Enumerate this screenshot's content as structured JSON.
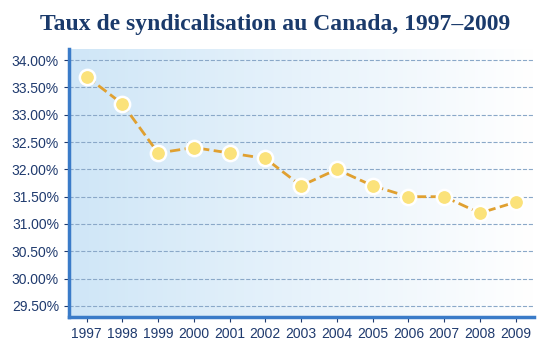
{
  "chart_data": {
    "type": "line",
    "title": "Taux de syndicalisation au Canada, 1997–2009",
    "categories": [
      "1997",
      "1998",
      "1999",
      "2000",
      "2001",
      "2002",
      "2003",
      "2004",
      "2005",
      "2006",
      "2007",
      "2008",
      "2009"
    ],
    "values": [
      33.7,
      33.2,
      32.3,
      32.4,
      32.3,
      32.2,
      31.7,
      32.0,
      31.7,
      31.5,
      31.5,
      31.2,
      31.4
    ],
    "color": "#e0a030",
    "marker": "o",
    "line_style": "dashed",
    "ylim": [
      29.3,
      34.2
    ],
    "yticks": [
      {
        "value": 29.5,
        "label": "29.50%"
      },
      {
        "value": 30.0,
        "label": "30.00%"
      },
      {
        "value": 30.5,
        "label": "30.50%"
      },
      {
        "value": 31.0,
        "label": "31.00%"
      },
      {
        "value": 31.5,
        "label": "31.50%"
      },
      {
        "value": 32.0,
        "label": "32.00%"
      },
      {
        "value": 32.5,
        "label": "32.50%"
      },
      {
        "value": 33.0,
        "label": "33.00%"
      },
      {
        "value": 33.5,
        "label": "33.50%"
      },
      {
        "value": 34.0,
        "label": "34.00%"
      }
    ],
    "grid": true
  }
}
